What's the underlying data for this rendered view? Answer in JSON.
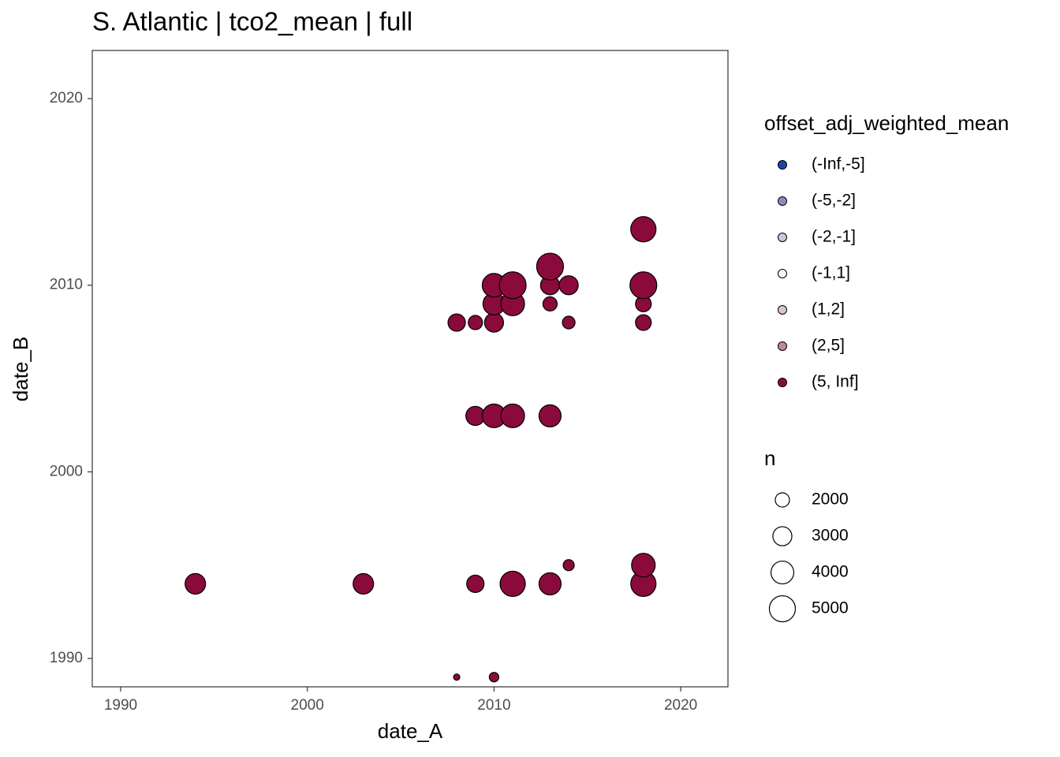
{
  "chart_data": {
    "type": "scatter",
    "title": "S. Atlantic | tco2_mean | full",
    "x_label": "date_A",
    "y_label": "date_B",
    "xlim": [
      1988.48,
      2022.53
    ],
    "ylim": [
      1988.48,
      2022.58
    ],
    "xticks": [
      1990,
      2000,
      2010,
      2020
    ],
    "yticks": [
      1990,
      2000,
      2010,
      2020
    ],
    "series": [
      {
        "color": "#8b0a3c",
        "x": [
          1994,
          2003,
          2009,
          2011,
          2013,
          2014,
          2018,
          2018,
          2008,
          2010,
          2009,
          2010,
          2011,
          2013,
          2008,
          2009,
          2010,
          2010,
          2010,
          2011,
          2011,
          2013,
          2013,
          2013,
          2014,
          2014,
          2018,
          2018,
          2018,
          2018
        ],
        "values": [
          1994,
          1994,
          1994,
          1994,
          1994,
          1995,
          1994,
          1995,
          1989,
          1989,
          2003,
          2003,
          2003,
          2003,
          2008,
          2008,
          2008,
          2009,
          2010,
          2009,
          2010,
          2009,
          2010,
          2011,
          2008,
          2010,
          2008,
          2009,
          2010,
          2013
        ],
        "sizes": [
          3375,
          3375,
          2620,
          4740,
          3800,
          1490,
          4740,
          4250,
          970,
          1290,
          3000,
          4250,
          4250,
          3800,
          2620,
          2000,
          3000,
          3800,
          4250,
          4250,
          5260,
          2000,
          3000,
          5260,
          1730,
          3000,
          2290,
          2290,
          5260,
          4740
        ]
      }
    ],
    "color_legend": {
      "title": "offset_adj_weighted_mean",
      "entries": [
        {
          "label": "(-Inf,-5]",
          "color": "#1a44a8"
        },
        {
          "label": "(-5,-2]",
          "color": "#8a8cbf"
        },
        {
          "label": "(-2,-1]",
          "color": "#c8c8dc"
        },
        {
          "label": "(-1,1]",
          "color": "#f5f5f5"
        },
        {
          "label": "(1,2]",
          "color": "#dcc4c8"
        },
        {
          "label": "(2,5]",
          "color": "#c28a94"
        },
        {
          "label": "(5, Inf]",
          "color": "#8b0a3c"
        }
      ]
    },
    "size_legend": {
      "title": "n",
      "values": [
        2000,
        3000,
        4000,
        5000
      ]
    }
  }
}
